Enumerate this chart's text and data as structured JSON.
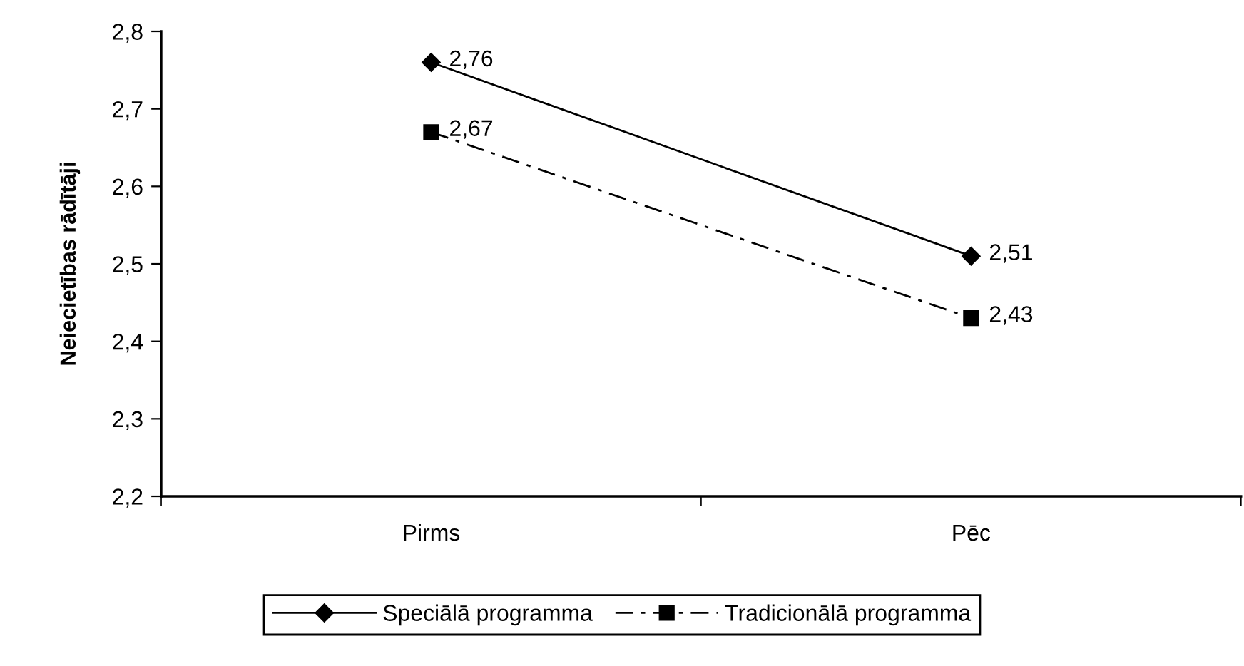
{
  "chart_data": {
    "type": "line",
    "ylabel": "Neiecietības rādītāji",
    "categories": [
      "Pirms",
      "Pēc"
    ],
    "series": [
      {
        "name": "Speciālā programma",
        "color": "#000000",
        "values": [
          2.76,
          2.51
        ],
        "marker": "diamond",
        "line_style": "solid",
        "value_labels": [
          "2,76",
          "2,51"
        ]
      },
      {
        "name": "Tradicionālā programma",
        "color": "#000000",
        "values": [
          2.67,
          2.43
        ],
        "marker": "square",
        "line_style": "dashed",
        "value_labels": [
          "2,67",
          "2,43"
        ]
      }
    ],
    "ylim": [
      2.2,
      2.8
    ],
    "yticks": [
      {
        "value": 2.2,
        "label": "2,2"
      },
      {
        "value": 2.3,
        "label": "2,3"
      },
      {
        "value": 2.4,
        "label": "2,4"
      },
      {
        "value": 2.5,
        "label": "2,5"
      },
      {
        "value": 2.6,
        "label": "2,6"
      },
      {
        "value": 2.7,
        "label": "2,7"
      },
      {
        "value": 2.8,
        "label": "2,8"
      }
    ],
    "grid": false,
    "legend": "bottom"
  }
}
